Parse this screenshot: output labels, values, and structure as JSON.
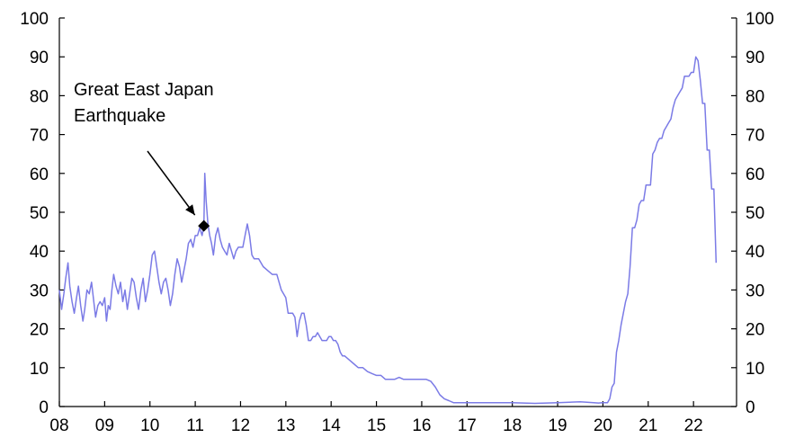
{
  "chart_data": {
    "type": "line",
    "title": "",
    "xlabel": "",
    "ylabel": "",
    "xlim": [
      2008,
      2022.95
    ],
    "ylim": [
      0,
      100
    ],
    "grid": false,
    "legend": "none",
    "line_color": "#7b7be6",
    "y_ticks": [
      "0",
      "10",
      "20",
      "30",
      "40",
      "50",
      "60",
      "70",
      "80",
      "90",
      "100"
    ],
    "y_tick_values": [
      0,
      10,
      20,
      30,
      40,
      50,
      60,
      70,
      80,
      90,
      100
    ],
    "x_ticks": [
      "08",
      "09",
      "10",
      "11",
      "12",
      "13",
      "14",
      "15",
      "16",
      "17",
      "18",
      "19",
      "20",
      "21",
      "22"
    ],
    "x_tick_values": [
      2008,
      2009,
      2010,
      2011,
      2012,
      2013,
      2014,
      2015,
      2016,
      2017,
      2018,
      2019,
      2020,
      2021,
      2022
    ],
    "annotation": {
      "lines": [
        "Great East Japan",
        "Earthquake"
      ],
      "x": 2011.19,
      "y": 46.5
    },
    "series": [
      {
        "values": [
          [
            2008.0,
            30
          ],
          [
            2008.05,
            25
          ],
          [
            2008.1,
            29
          ],
          [
            2008.14,
            33
          ],
          [
            2008.19,
            37
          ],
          [
            2008.23,
            31
          ],
          [
            2008.28,
            27
          ],
          [
            2008.33,
            24
          ],
          [
            2008.38,
            28
          ],
          [
            2008.42,
            31
          ],
          [
            2008.47,
            26
          ],
          [
            2008.52,
            22
          ],
          [
            2008.56,
            25
          ],
          [
            2008.61,
            30
          ],
          [
            2008.66,
            29
          ],
          [
            2008.71,
            32
          ],
          [
            2008.76,
            27
          ],
          [
            2008.8,
            23
          ],
          [
            2008.85,
            26
          ],
          [
            2008.9,
            27
          ],
          [
            2008.95,
            26
          ],
          [
            2009.0,
            28
          ],
          [
            2009.04,
            22
          ],
          [
            2009.08,
            26
          ],
          [
            2009.12,
            25
          ],
          [
            2009.16,
            30
          ],
          [
            2009.2,
            34
          ],
          [
            2009.25,
            31
          ],
          [
            2009.3,
            29
          ],
          [
            2009.35,
            32
          ],
          [
            2009.4,
            27
          ],
          [
            2009.45,
            30
          ],
          [
            2009.5,
            25
          ],
          [
            2009.55,
            29
          ],
          [
            2009.6,
            33
          ],
          [
            2009.65,
            32
          ],
          [
            2009.7,
            28
          ],
          [
            2009.75,
            25
          ],
          [
            2009.8,
            30
          ],
          [
            2009.85,
            33
          ],
          [
            2009.9,
            27
          ],
          [
            2009.95,
            30
          ],
          [
            2010.0,
            34
          ],
          [
            2010.05,
            39
          ],
          [
            2010.1,
            40
          ],
          [
            2010.15,
            36
          ],
          [
            2010.2,
            32
          ],
          [
            2010.25,
            29
          ],
          [
            2010.3,
            32
          ],
          [
            2010.35,
            33
          ],
          [
            2010.4,
            30
          ],
          [
            2010.45,
            26
          ],
          [
            2010.5,
            29
          ],
          [
            2010.55,
            34
          ],
          [
            2010.6,
            38
          ],
          [
            2010.65,
            36
          ],
          [
            2010.7,
            32
          ],
          [
            2010.75,
            35
          ],
          [
            2010.8,
            38
          ],
          [
            2010.85,
            42
          ],
          [
            2010.9,
            43
          ],
          [
            2010.95,
            41
          ],
          [
            2011.0,
            44
          ],
          [
            2011.05,
            44
          ],
          [
            2011.1,
            46
          ],
          [
            2011.15,
            44
          ],
          [
            2011.19,
            46.5
          ],
          [
            2011.21,
            60
          ],
          [
            2011.24,
            53
          ],
          [
            2011.28,
            47
          ],
          [
            2011.32,
            44
          ],
          [
            2011.36,
            42
          ],
          [
            2011.4,
            39
          ],
          [
            2011.45,
            44
          ],
          [
            2011.5,
            46
          ],
          [
            2011.55,
            43
          ],
          [
            2011.6,
            41
          ],
          [
            2011.65,
            40
          ],
          [
            2011.7,
            39
          ],
          [
            2011.75,
            42
          ],
          [
            2011.8,
            40
          ],
          [
            2011.85,
            38
          ],
          [
            2011.9,
            40
          ],
          [
            2011.95,
            41
          ],
          [
            2012.0,
            41
          ],
          [
            2012.05,
            41
          ],
          [
            2012.1,
            44
          ],
          [
            2012.15,
            47
          ],
          [
            2012.2,
            44
          ],
          [
            2012.25,
            39
          ],
          [
            2012.3,
            38
          ],
          [
            2012.4,
            38
          ],
          [
            2012.5,
            36
          ],
          [
            2012.6,
            35
          ],
          [
            2012.7,
            34
          ],
          [
            2012.8,
            34
          ],
          [
            2012.9,
            30
          ],
          [
            2013.0,
            28
          ],
          [
            2013.05,
            24
          ],
          [
            2013.1,
            24
          ],
          [
            2013.15,
            24
          ],
          [
            2013.2,
            23
          ],
          [
            2013.25,
            18
          ],
          [
            2013.3,
            22
          ],
          [
            2013.35,
            24
          ],
          [
            2013.4,
            24
          ],
          [
            2013.45,
            21
          ],
          [
            2013.5,
            17
          ],
          [
            2013.55,
            17
          ],
          [
            2013.6,
            18
          ],
          [
            2013.65,
            18
          ],
          [
            2013.7,
            19
          ],
          [
            2013.8,
            17
          ],
          [
            2013.9,
            17
          ],
          [
            2013.95,
            18
          ],
          [
            2014.0,
            18
          ],
          [
            2014.05,
            17
          ],
          [
            2014.1,
            17
          ],
          [
            2014.15,
            16
          ],
          [
            2014.2,
            14
          ],
          [
            2014.25,
            13
          ],
          [
            2014.3,
            13
          ],
          [
            2014.4,
            12
          ],
          [
            2014.5,
            11
          ],
          [
            2014.6,
            10
          ],
          [
            2014.7,
            10
          ],
          [
            2014.8,
            9
          ],
          [
            2014.9,
            8.5
          ],
          [
            2015.0,
            8
          ],
          [
            2015.1,
            8
          ],
          [
            2015.2,
            7
          ],
          [
            2015.3,
            7
          ],
          [
            2015.4,
            7
          ],
          [
            2015.5,
            7.5
          ],
          [
            2015.6,
            7
          ],
          [
            2015.7,
            7
          ],
          [
            2015.8,
            7
          ],
          [
            2015.9,
            7
          ],
          [
            2016.0,
            7
          ],
          [
            2016.1,
            7
          ],
          [
            2016.2,
            6.5
          ],
          [
            2016.3,
            5
          ],
          [
            2016.35,
            4
          ],
          [
            2016.4,
            3
          ],
          [
            2016.5,
            2
          ],
          [
            2016.6,
            1.5
          ],
          [
            2016.7,
            1
          ],
          [
            2016.8,
            1
          ],
          [
            2016.9,
            1
          ],
          [
            2017.0,
            1
          ],
          [
            2017.5,
            1
          ],
          [
            2018.0,
            1
          ],
          [
            2018.5,
            0.8
          ],
          [
            2019.0,
            1
          ],
          [
            2019.5,
            1.2
          ],
          [
            2019.8,
            1
          ],
          [
            2019.9,
            0.9
          ],
          [
            2020.0,
            1
          ],
          [
            2020.1,
            1
          ],
          [
            2020.15,
            2
          ],
          [
            2020.2,
            5
          ],
          [
            2020.25,
            6
          ],
          [
            2020.3,
            14
          ],
          [
            2020.35,
            17
          ],
          [
            2020.4,
            21
          ],
          [
            2020.45,
            24
          ],
          [
            2020.5,
            27
          ],
          [
            2020.55,
            29
          ],
          [
            2020.6,
            36
          ],
          [
            2020.65,
            46
          ],
          [
            2020.7,
            46
          ],
          [
            2020.75,
            48
          ],
          [
            2020.8,
            52
          ],
          [
            2020.85,
            53
          ],
          [
            2020.9,
            53
          ],
          [
            2020.95,
            57
          ],
          [
            2021.0,
            57
          ],
          [
            2021.05,
            57
          ],
          [
            2021.1,
            65
          ],
          [
            2021.15,
            66
          ],
          [
            2021.2,
            68
          ],
          [
            2021.25,
            69
          ],
          [
            2021.3,
            69
          ],
          [
            2021.35,
            71
          ],
          [
            2021.4,
            72
          ],
          [
            2021.45,
            73
          ],
          [
            2021.5,
            74
          ],
          [
            2021.55,
            77
          ],
          [
            2021.6,
            79
          ],
          [
            2021.65,
            80
          ],
          [
            2021.7,
            81
          ],
          [
            2021.75,
            82
          ],
          [
            2021.8,
            85
          ],
          [
            2021.85,
            85
          ],
          [
            2021.9,
            85
          ],
          [
            2021.95,
            86
          ],
          [
            2022.0,
            86
          ],
          [
            2022.05,
            90
          ],
          [
            2022.1,
            89
          ],
          [
            2022.15,
            84
          ],
          [
            2022.2,
            78
          ],
          [
            2022.25,
            78
          ],
          [
            2022.3,
            66
          ],
          [
            2022.35,
            66
          ],
          [
            2022.4,
            56
          ],
          [
            2022.45,
            56
          ],
          [
            2022.5,
            37
          ]
        ]
      }
    ]
  }
}
